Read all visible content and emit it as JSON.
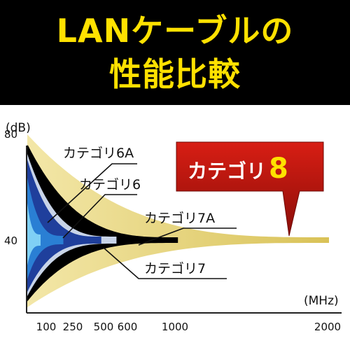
{
  "header": {
    "line1": "LANケーブルの",
    "line2": "性能比較"
  },
  "chart_data": {
    "type": "area",
    "y_unit_label": "(dB)",
    "x_unit_label": "(MHz)",
    "y_ticks": [
      {
        "value": 80,
        "label": "80"
      },
      {
        "value": 40,
        "label": "40"
      }
    ],
    "x_ticks": [
      {
        "value": 100,
        "label": "100"
      },
      {
        "value": 250,
        "label": "250"
      },
      {
        "value": 500,
        "label": "500"
      },
      {
        "value": 600,
        "label": "600"
      },
      {
        "value": 1000,
        "label": "1000"
      },
      {
        "value": 2000,
        "label": "2000"
      }
    ],
    "series": [
      {
        "name": "カテゴリ8",
        "max_frequency_mhz": 2000,
        "color": "#e6d27a"
      },
      {
        "name": "カテゴリ7A",
        "max_frequency_mhz": 1000,
        "color": "#000000"
      },
      {
        "name": "カテゴリ7",
        "max_frequency_mhz": 600,
        "color": "#c8d4e8"
      },
      {
        "name": "カテゴリ6A",
        "max_frequency_mhz": 500,
        "color": "#1f3f9c"
      },
      {
        "name": "カテゴリ6",
        "max_frequency_mhz": 250,
        "color": "#2a7fd4"
      },
      {
        "name": "",
        "max_frequency_mhz": 100,
        "color": "#7fd0f5"
      }
    ],
    "labels": {
      "cat6a": "カテゴリ6A",
      "cat6": "カテゴリ6",
      "cat7a": "カテゴリ7A",
      "cat7": "カテゴリ7"
    },
    "highlight": {
      "text": "カテゴリ",
      "number": "8",
      "box_color": "#c8160f",
      "text_color": "#ffffff",
      "number_color": "#ffe100"
    },
    "converge_db": 40
  }
}
